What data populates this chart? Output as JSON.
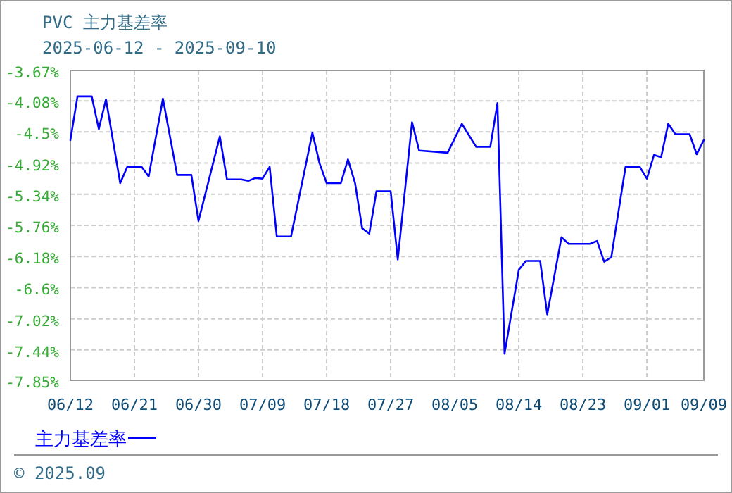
{
  "chart_data": {
    "type": "line",
    "title": "PVC  主力基差率",
    "subtitle": "2025-06-12 - 2025-09-10",
    "annotations": [
      "© 2025.09"
    ],
    "x": [
      "2025-06-12",
      "2025-06-13",
      "2025-06-15",
      "2025-06-16",
      "2025-06-17",
      "2025-06-19",
      "2025-06-20",
      "2025-06-22",
      "2025-06-23",
      "2025-06-25",
      "2025-06-27",
      "2025-06-29",
      "2025-06-30",
      "2025-07-03",
      "2025-07-04",
      "2025-07-06",
      "2025-07-07",
      "2025-07-08",
      "2025-07-09",
      "2025-07-10",
      "2025-07-11",
      "2025-07-13",
      "2025-07-16",
      "2025-07-17",
      "2025-07-18",
      "2025-07-20",
      "2025-07-21",
      "2025-07-22",
      "2025-07-23",
      "2025-07-24",
      "2025-07-25",
      "2025-07-27",
      "2025-07-28",
      "2025-07-30",
      "2025-07-31",
      "2025-08-04",
      "2025-08-06",
      "2025-08-08",
      "2025-08-10",
      "2025-08-11",
      "2025-08-12",
      "2025-08-14",
      "2025-08-15",
      "2025-08-17",
      "2025-08-18",
      "2025-08-20",
      "2025-08-21",
      "2025-08-24",
      "2025-08-25",
      "2025-08-26",
      "2025-08-27",
      "2025-08-29",
      "2025-08-31",
      "2025-09-01",
      "2025-09-02",
      "2025-09-03",
      "2025-09-04",
      "2025-09-05",
      "2025-09-07",
      "2025-09-08",
      "2025-09-09"
    ],
    "series": [
      {
        "name": "主力基差率",
        "color": "#0000ff",
        "values": [
          -4.61,
          -4.02,
          -4.02,
          -4.46,
          -4.06,
          -5.19,
          -4.97,
          -4.97,
          -5.1,
          -4.05,
          -5.08,
          -5.08,
          -5.7,
          -4.56,
          -5.14,
          -5.14,
          -5.16,
          -5.12,
          -5.13,
          -4.97,
          -5.91,
          -5.91,
          -4.51,
          -4.92,
          -5.19,
          -5.19,
          -4.87,
          -5.19,
          -5.8,
          -5.87,
          -5.3,
          -5.3,
          -6.22,
          -4.37,
          -4.75,
          -4.78,
          -4.39,
          -4.7,
          -4.7,
          -4.11,
          -7.49,
          -6.36,
          -6.24,
          -6.24,
          -6.96,
          -5.92,
          -6.01,
          -6.01,
          -5.97,
          -6.25,
          -6.19,
          -4.97,
          -4.97,
          -5.13,
          -4.81,
          -4.84,
          -4.39,
          -4.53,
          -4.53,
          -4.8,
          -4.61
        ]
      }
    ],
    "xlim": [
      "2025-06-12",
      "2025-09-09"
    ],
    "xticks": [
      {
        "value": "2025-06-12",
        "label": "06/12"
      },
      {
        "value": "2025-06-21",
        "label": "06/21"
      },
      {
        "value": "2025-06-30",
        "label": "06/30"
      },
      {
        "value": "2025-07-09",
        "label": "07/09"
      },
      {
        "value": "2025-07-18",
        "label": "07/18"
      },
      {
        "value": "2025-07-27",
        "label": "07/27"
      },
      {
        "value": "2025-08-05",
        "label": "08/05"
      },
      {
        "value": "2025-08-14",
        "label": "08/14"
      },
      {
        "value": "2025-08-23",
        "label": "08/23"
      },
      {
        "value": "2025-09-01",
        "label": "09/01"
      },
      {
        "value": "2025-09-09",
        "label": "09/09"
      }
    ],
    "ylim": [
      -7.85,
      -3.67
    ],
    "yticks": [
      {
        "value": -7.85,
        "label": "-7.85%"
      },
      {
        "value": -7.44,
        "label": "-7.44%"
      },
      {
        "value": -7.02,
        "label": "-7.02%"
      },
      {
        "value": -6.6,
        "label": "-6.6%"
      },
      {
        "value": -6.18,
        "label": "-6.18%"
      },
      {
        "value": -5.76,
        "label": "-5.76%"
      },
      {
        "value": -5.34,
        "label": "-5.34%"
      },
      {
        "value": -4.92,
        "label": "-4.92%"
      },
      {
        "value": -4.5,
        "label": "-4.5%"
      },
      {
        "value": -4.08,
        "label": "-4.08%"
      },
      {
        "value": -3.67,
        "label": "-3.67%"
      }
    ],
    "grid": true,
    "legend": "bottom left",
    "line_style": "solid"
  }
}
